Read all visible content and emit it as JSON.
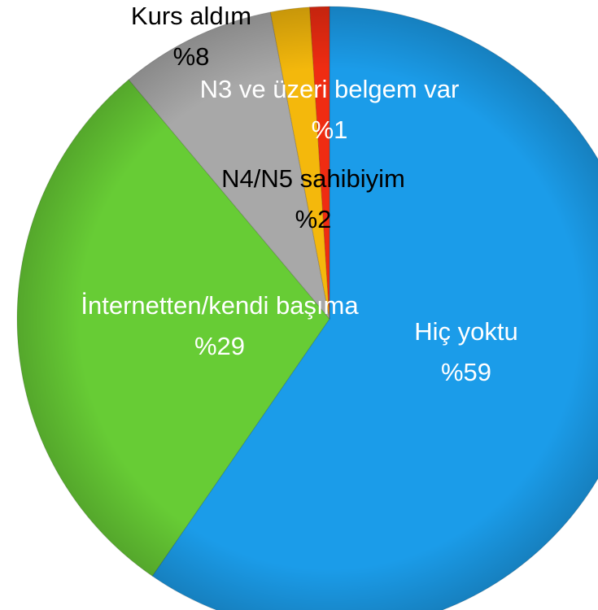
{
  "chart_data": {
    "type": "pie",
    "categories": [
      "Hiç yoktu",
      "İnternetten/kendi başıma",
      "Kurs aldım",
      "N4/N5 sahibiyim",
      "N3 ve üzeri belgem var"
    ],
    "values": [
      59,
      29,
      8,
      2,
      1
    ],
    "value_labels": [
      "%59",
      "%29",
      "%8",
      "%2",
      "%1"
    ],
    "colors": [
      "#1b9ce9",
      "#67cc35",
      "#a8a8a8",
      "#f4b80c",
      "#ef2c12"
    ]
  }
}
